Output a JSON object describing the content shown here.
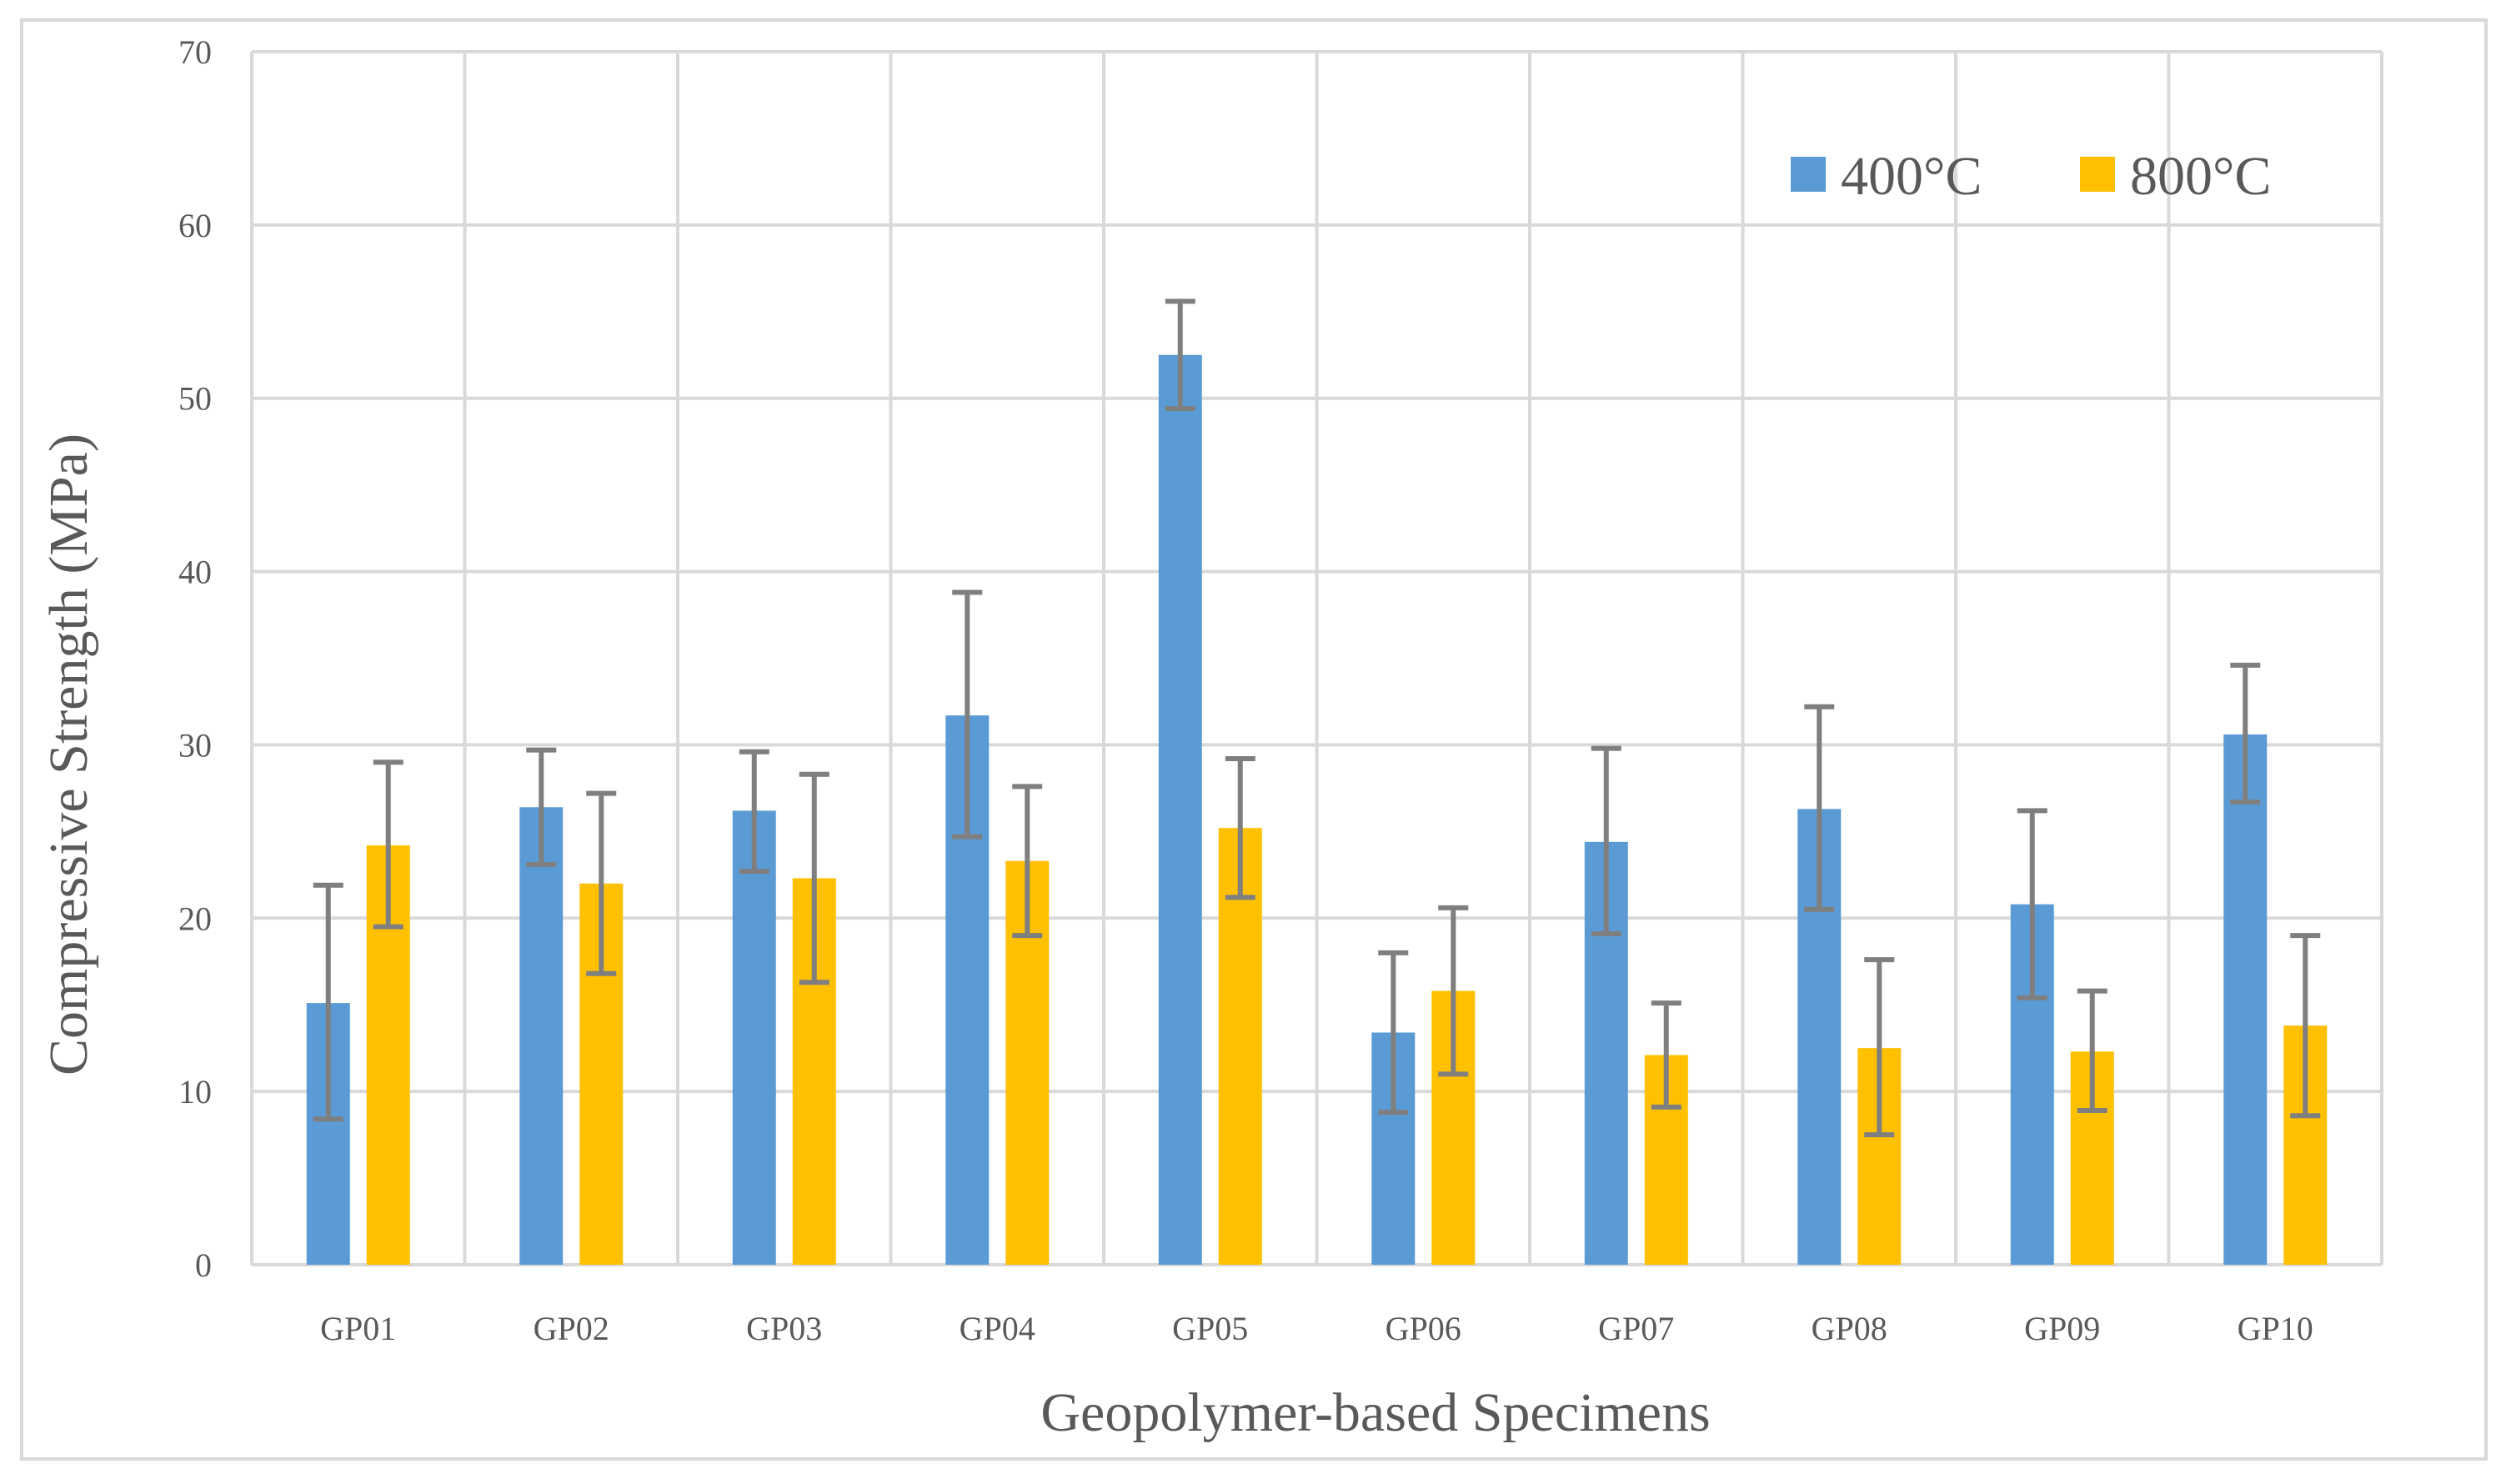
{
  "chart_data": {
    "type": "bar",
    "title": "",
    "xlabel": "Geopolymer-based Specimens",
    "ylabel": "Compressive  Strength (MPa)",
    "ylim": [
      0,
      70
    ],
    "yticks": [
      0,
      10,
      20,
      30,
      40,
      50,
      60,
      70
    ],
    "ytick_labels": [
      "0",
      "10",
      "20",
      "30",
      "40",
      "50",
      "60",
      "70"
    ],
    "grid": true,
    "legend_position": "top-right",
    "categories": [
      "GP01",
      "GP02",
      "GP03",
      "GP04",
      "GP05",
      "GP06",
      "GP07",
      "GP08",
      "GP09",
      "GP10"
    ],
    "series": [
      {
        "name": "400°C",
        "color": "#5b9bd5",
        "values": [
          15.1,
          26.4,
          26.2,
          31.7,
          52.5,
          13.4,
          24.4,
          26.3,
          20.8,
          30.6
        ],
        "error_low": [
          8.4,
          23.1,
          22.7,
          24.7,
          49.4,
          8.8,
          19.1,
          20.5,
          15.4,
          26.7
        ],
        "error_high": [
          21.9,
          29.7,
          29.6,
          38.8,
          55.6,
          18.0,
          29.8,
          32.2,
          26.2,
          34.6
        ]
      },
      {
        "name": "800°C",
        "color": "#ffc000",
        "values": [
          24.2,
          22.0,
          22.3,
          23.3,
          25.2,
          15.8,
          12.1,
          12.5,
          12.3,
          13.8
        ],
        "error_low": [
          19.5,
          16.8,
          16.3,
          19.0,
          21.2,
          11.0,
          9.1,
          7.5,
          8.9,
          8.6
        ],
        "error_high": [
          29.0,
          27.2,
          28.3,
          27.6,
          29.2,
          20.6,
          15.1,
          17.6,
          15.8,
          19.0
        ]
      }
    ],
    "error_bar_color": "#7f7f7f",
    "grid_color": "#d9d9d9"
  }
}
